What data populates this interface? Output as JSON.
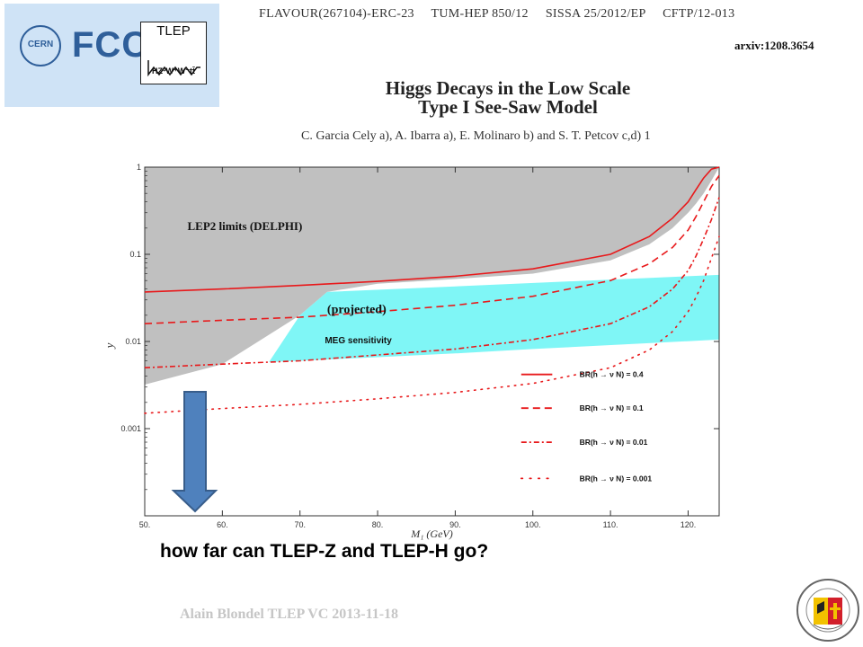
{
  "header": {
    "line": "FLAVOUR(267104)-ERC-23     TUM-HEP 850/12     SISSA 25/2012/EP     CFTP/12-013",
    "arxiv": "arxiv:1208.3654"
  },
  "logos": {
    "cern": "CERN",
    "fcc": "FCC",
    "tlep_title": "TLEP",
    "tlep_sub": "HZ⁰W⁺W⁻tt̄"
  },
  "paper": {
    "title_line1": "Higgs Decays in the Low Scale",
    "title_line2": "Type I See-Saw Model",
    "authors": "C. Garcia Cely a), A. Ibarra a), E. Molinaro b) and S. T. Petcov c,d) 1"
  },
  "chart_data": {
    "type": "line",
    "xlabel": "M₁ (GeV)",
    "ylabel": "y",
    "x_ticks": [
      "50.",
      "60.",
      "70.",
      "80.",
      "90.",
      "100.",
      "110.",
      "120."
    ],
    "y_ticks": [
      "1",
      "0.1",
      "0.01",
      "0.001"
    ],
    "xlim": [
      50,
      124
    ],
    "ylim": [
      0.0001,
      1
    ],
    "y_scale": "log",
    "regions": [
      {
        "name": "LEP2 limits (DELPHI)",
        "color": "#c0c0c0"
      },
      {
        "name": "MEG sensitivity",
        "label2": "(projected)",
        "color": "#7ff6f6"
      }
    ],
    "series": [
      {
        "name": "BR(h → ν N) = 0.4",
        "style": "solid",
        "x": [
          50,
          60,
          70,
          80,
          90,
          100,
          110,
          115,
          118,
          120,
          121,
          122,
          123,
          124
        ],
        "y": [
          0.037,
          0.04,
          0.044,
          0.049,
          0.056,
          0.068,
          0.1,
          0.16,
          0.26,
          0.4,
          0.55,
          0.75,
          0.95,
          1.0
        ]
      },
      {
        "name": "BR(h → ν N) = 0.1",
        "style": "dash",
        "x": [
          50,
          60,
          70,
          80,
          90,
          100,
          110,
          115,
          118,
          120,
          121,
          122,
          123,
          124
        ],
        "y": [
          0.016,
          0.0175,
          0.019,
          0.022,
          0.026,
          0.033,
          0.05,
          0.078,
          0.12,
          0.19,
          0.27,
          0.4,
          0.6,
          0.8
        ]
      },
      {
        "name": "BR(h → ν N) = 0.01",
        "style": "dashdot",
        "x": [
          50,
          60,
          70,
          80,
          90,
          100,
          110,
          115,
          118,
          120,
          121,
          122,
          123,
          124
        ],
        "y": [
          0.005,
          0.0055,
          0.006,
          0.007,
          0.0082,
          0.0105,
          0.016,
          0.025,
          0.04,
          0.065,
          0.095,
          0.15,
          0.25,
          0.45
        ]
      },
      {
        "name": "BR(h → ν N) = 0.001",
        "style": "dot",
        "x": [
          50,
          60,
          70,
          80,
          90,
          100,
          110,
          115,
          118,
          120,
          121,
          122,
          123,
          124
        ],
        "y": [
          0.0015,
          0.0017,
          0.0019,
          0.0022,
          0.0026,
          0.0033,
          0.005,
          0.008,
          0.013,
          0.022,
          0.032,
          0.05,
          0.09,
          0.16
        ]
      }
    ],
    "annotation": "how far can TLEP-Z and TLEP-H go?"
  },
  "footer": {
    "text": "Alain Blondel TLEP VC 2013-11-18"
  },
  "colors": {
    "lep_region": "#c0c0c0",
    "meg_region": "#7ff6f6",
    "curve": "#e8191b",
    "arrow_fill": "#4f81bd",
    "arrow_stroke": "#385d8a",
    "logo_bg": "#cfe3f6"
  }
}
